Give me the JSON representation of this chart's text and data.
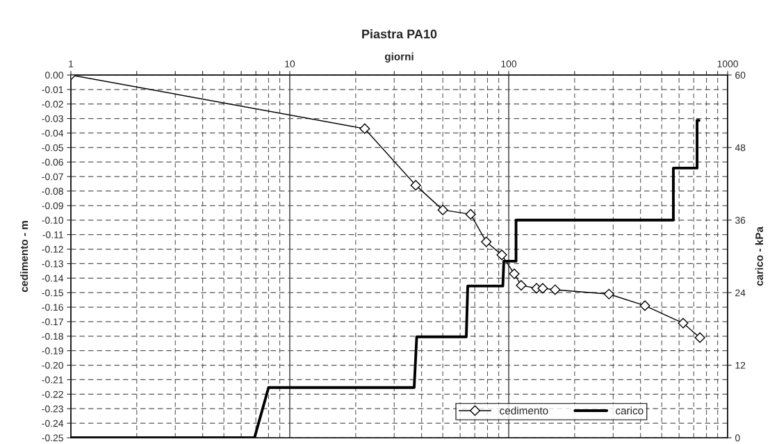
{
  "chart_data": {
    "type": "line",
    "title": "Piastra PA10",
    "xlabel": "giorni",
    "ylabel": "cedimento - m",
    "y2label": "carico - kPa",
    "log": "x",
    "grid": true,
    "legend": "bottom right",
    "xlim": [
      1,
      1000
    ],
    "xticks": [
      1,
      {
        "value": 2,
        "label": null
      },
      {
        "value": 3,
        "label": null
      },
      {
        "value": 4,
        "label": null
      },
      {
        "value": 5,
        "label": null
      },
      {
        "value": 6,
        "label": null
      },
      {
        "value": 7,
        "label": null
      },
      {
        "value": 8,
        "label": null
      },
      {
        "value": 9,
        "label": null
      },
      10,
      {
        "value": 20,
        "label": null
      },
      {
        "value": 30,
        "label": null
      },
      {
        "value": 40,
        "label": null
      },
      {
        "value": 50,
        "label": null
      },
      {
        "value": 60,
        "label": null
      },
      {
        "value": 70,
        "label": null
      },
      {
        "value": 80,
        "label": null
      },
      {
        "value": 90,
        "label": null
      },
      100,
      {
        "value": 200,
        "label": null
      },
      {
        "value": 300,
        "label": null
      },
      {
        "value": 400,
        "label": null
      },
      {
        "value": 500,
        "label": null
      },
      {
        "value": 600,
        "label": null
      },
      {
        "value": 700,
        "label": null
      },
      {
        "value": 800,
        "label": null
      },
      {
        "value": 900,
        "label": null
      },
      1000
    ],
    "ylim": [
      -0.25,
      0
    ],
    "yticks": [
      {
        "value": 0,
        "label": "0.00"
      },
      {
        "value": -0.01,
        "label": "-0.01"
      },
      {
        "value": -0.02,
        "label": "-0.02"
      },
      {
        "value": -0.03,
        "label": "-0.03"
      },
      {
        "value": -0.04,
        "label": "-0.04"
      },
      {
        "value": -0.05,
        "label": "-0.05"
      },
      {
        "value": -0.06,
        "label": "-0.06"
      },
      {
        "value": -0.07,
        "label": "-0.07"
      },
      {
        "value": -0.08,
        "label": "-0.08"
      },
      {
        "value": -0.09,
        "label": "-0.09"
      },
      {
        "value": -0.1,
        "label": "-0.10"
      },
      {
        "value": -0.11,
        "label": "-0.11"
      },
      {
        "value": -0.12,
        "label": "-0.12"
      },
      {
        "value": -0.13,
        "label": "-0.13"
      },
      {
        "value": -0.14,
        "label": "-0.14"
      },
      {
        "value": -0.15,
        "label": "-0.15"
      },
      {
        "value": -0.16,
        "label": "-0.16"
      },
      {
        "value": -0.17,
        "label": "-0.17"
      },
      {
        "value": -0.18,
        "label": "-0.18"
      },
      {
        "value": -0.19,
        "label": "-0.19"
      },
      {
        "value": -0.2,
        "label": "-0.20"
      },
      {
        "value": -0.21,
        "label": "-0.21"
      },
      {
        "value": -0.22,
        "label": "-0.22"
      },
      {
        "value": -0.23,
        "label": "-0.23"
      },
      {
        "value": -0.24,
        "label": "-0.24"
      },
      {
        "value": -0.25,
        "label": "-0.25"
      }
    ],
    "y2lim": [
      0,
      60
    ],
    "y2ticks": [
      0,
      12,
      24,
      36,
      48,
      60
    ],
    "series": [
      {
        "name": "cedimento",
        "color": "#000000",
        "marker": "diamond",
        "line_style": "solid",
        "x": [
          1,
          22,
          37.6,
          50,
          67,
          79,
          93,
          106,
          114,
          134,
          143,
          163,
          287,
          419,
          626,
          747
        ],
        "values": [
          0,
          -0.037,
          -0.076,
          -0.093,
          -0.096,
          -0.115,
          -0.124,
          -0.137,
          -0.145,
          -0.147,
          -0.147,
          -0.148,
          -0.151,
          -0.159,
          -0.171,
          -0.181
        ]
      },
      {
        "name": "carico",
        "color": "#000000",
        "marker": "none",
        "line_style": "solid",
        "axis": "y2",
        "x": [
          1,
          6.9,
          8,
          37,
          38,
          64,
          65,
          94,
          95,
          108,
          108,
          565,
          565,
          725,
          725,
          740
        ],
        "values": [
          0,
          0,
          8.3,
          8.3,
          16.7,
          16.7,
          25.1,
          25.1,
          29.2,
          29.2,
          36,
          36,
          44.6,
          44.6,
          52.5,
          52.5
        ]
      }
    ]
  }
}
